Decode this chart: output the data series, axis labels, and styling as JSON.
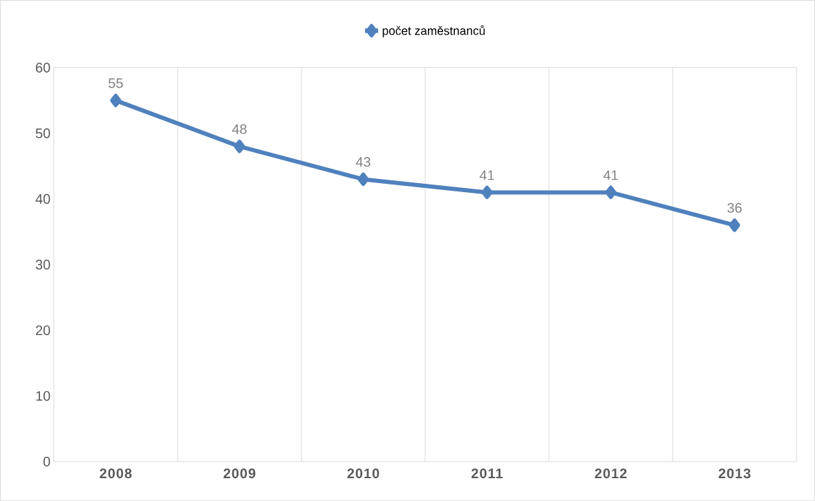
{
  "chart_data": {
    "type": "line",
    "categories": [
      "2008",
      "2009",
      "2010",
      "2011",
      "2012",
      "2013"
    ],
    "series": [
      {
        "name": "počet zaměstnanců",
        "color": "#4f81bd",
        "values": [
          55,
          48,
          43,
          41,
          41,
          36
        ]
      }
    ],
    "ylim": [
      0,
      60
    ],
    "yticks": [
      0,
      10,
      20,
      30,
      40,
      50,
      60
    ],
    "grid": "x",
    "legend": "top",
    "marker": "diamond",
    "data_labels": true
  }
}
